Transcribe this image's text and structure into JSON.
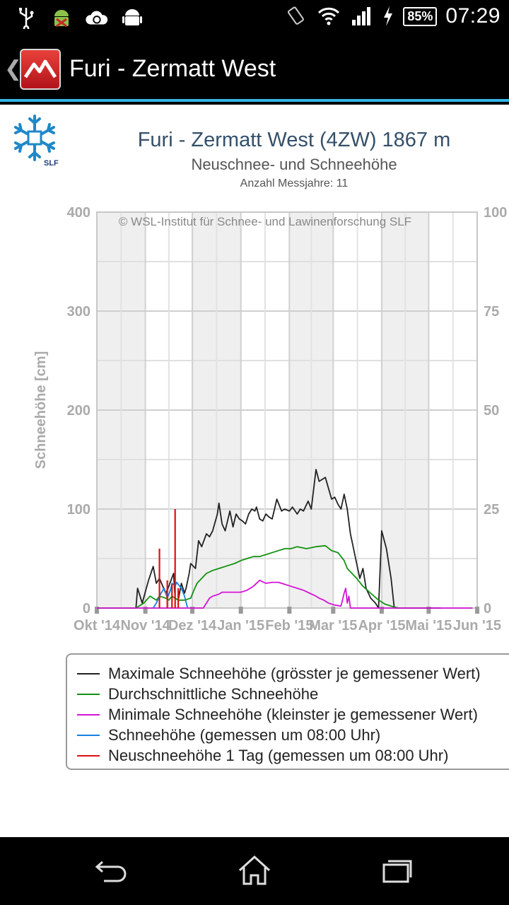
{
  "status_bar": {
    "battery": "85%",
    "time": "07:29",
    "icons": [
      "usb-icon",
      "android-debug-icon",
      "cloud-sync-icon",
      "android-icon",
      "rotate-icon",
      "wifi-icon",
      "signal-icon",
      "charging-icon"
    ]
  },
  "action_bar": {
    "title": "Furi - Zermatt West",
    "back_icon": "chevron-left-icon",
    "logo_icon": "mountain-logo-icon"
  },
  "nav_bar": {
    "icons": [
      "back-arrow-icon",
      "home-icon",
      "recent-apps-icon"
    ]
  },
  "colors": {
    "accent": "#33b5e5",
    "max": "#222222",
    "avg": "#129212",
    "min": "#d414d4",
    "measured": "#1a7fe0",
    "new_snow": "#dd1111",
    "band": "#efefef",
    "axis_text": "#aaaaaa"
  },
  "chart_data": {
    "type": "line",
    "title": "Furi - Zermatt West (4ZW) 1867 m",
    "subtitle": "Neuschnee- und Schneehöhe",
    "note": "Anzahl Messjahre: 11",
    "watermark": "© WSL-Institut für Schnee- und Lawinenforschung SLF",
    "ylabel": "Schneehöhe [cm]",
    "ylim": [
      0,
      400
    ],
    "y_ticks": [
      "0",
      "100",
      "200",
      "300",
      "400"
    ],
    "y2lim": [
      0,
      100
    ],
    "y2_ticks": [
      "0",
      "25",
      "50",
      "75",
      "100"
    ],
    "x_ticks": [
      "Okt '14",
      "Nov '14",
      "Dez '14",
      "Jan '15",
      "Feb '15",
      "Mar '15",
      "Apr '15",
      "Mai '15",
      "Jun '15"
    ],
    "x_unit": "days since 1 Oct 2014",
    "xlim": [
      0,
      243
    ],
    "grid": true,
    "series": [
      {
        "name": "Maximale Schneehöhe (grösster je gemessener Wert)",
        "key": "max",
        "x": [
          0,
          25,
          26,
          29,
          33,
          36,
          38,
          40,
          44,
          46,
          49,
          50,
          52,
          54,
          56,
          57,
          59,
          60,
          63,
          65,
          67,
          70,
          72,
          74,
          77,
          78,
          80,
          82,
          85,
          87,
          89,
          91,
          93,
          95,
          97,
          99,
          101,
          102,
          104,
          106,
          108,
          110,
          112,
          115,
          118,
          120,
          123,
          125,
          128,
          130,
          132,
          135,
          137,
          140,
          142,
          146,
          150,
          152,
          154,
          156,
          158,
          160,
          162,
          164,
          166,
          168,
          170,
          172,
          175,
          178,
          180,
          182,
          185,
          188,
          190,
          192,
          194,
          196,
          198,
          200,
          202,
          204,
          206,
          208,
          210,
          211,
          213,
          215,
          220
        ],
        "values": [
          0,
          0,
          20,
          5,
          28,
          42,
          25,
          30,
          15,
          22,
          35,
          10,
          8,
          25,
          15,
          20,
          35,
          45,
          40,
          68,
          62,
          75,
          72,
          78,
          95,
          106,
          85,
          78,
          98,
          82,
          95,
          90,
          88,
          85,
          95,
          100,
          98,
          102,
          90,
          88,
          95,
          92,
          90,
          110,
          98,
          100,
          98,
          102,
          95,
          100,
          98,
          108,
          100,
          140,
          128,
          132,
          110,
          112,
          105,
          100,
          115,
          100,
          75,
          60,
          45,
          30,
          40,
          20,
          10,
          5,
          0,
          78,
          60,
          30,
          0,
          0,
          0,
          0,
          0,
          0,
          0,
          0,
          0,
          0,
          0,
          0,
          0,
          0,
          0
        ]
      },
      {
        "name": "Durchschnittliche Schneehöhe",
        "key": "avg",
        "x": [
          0,
          25,
          30,
          34,
          36,
          38,
          40,
          44,
          46,
          48,
          50,
          52,
          56,
          60,
          62,
          64,
          67,
          70,
          74,
          78,
          82,
          88,
          92,
          96,
          100,
          104,
          110,
          116,
          120,
          124,
          128,
          134,
          140,
          146,
          150,
          154,
          158,
          160,
          163,
          166,
          170,
          175,
          180,
          184,
          188,
          190,
          193
        ],
        "values": [
          0,
          0,
          5,
          12,
          10,
          8,
          12,
          10,
          8,
          12,
          10,
          8,
          8,
          10,
          18,
          25,
          30,
          35,
          38,
          40,
          42,
          45,
          48,
          50,
          52,
          52,
          55,
          58,
          60,
          60,
          62,
          60,
          62,
          63,
          58,
          56,
          48,
          40,
          35,
          30,
          22,
          15,
          8,
          4,
          2,
          1,
          0
        ]
      },
      {
        "name": "Minimale Schneehöhe (kleinster je gemessener Wert)",
        "key": "min",
        "x": [
          0,
          68,
          70,
          72,
          74,
          78,
          80,
          84,
          88,
          92,
          96,
          100,
          104,
          108,
          112,
          116,
          120,
          124,
          128,
          132,
          136,
          140,
          142,
          145,
          148,
          152,
          156,
          158,
          159,
          160,
          161,
          162,
          164,
          240
        ],
        "values": [
          0,
          0,
          5,
          10,
          12,
          14,
          16,
          16,
          16,
          16,
          18,
          22,
          28,
          25,
          26,
          26,
          24,
          22,
          20,
          18,
          15,
          12,
          10,
          8,
          5,
          3,
          2,
          15,
          20,
          5,
          12,
          0,
          0,
          0
        ]
      },
      {
        "name": "Schneehöhe (gemessen um 08:00 Uhr)",
        "key": "measured",
        "x": [
          36,
          38,
          41,
          43,
          45,
          47,
          48,
          50,
          51,
          52,
          54,
          56,
          58
        ],
        "values": [
          0,
          5,
          15,
          20,
          10,
          18,
          25,
          22,
          26,
          24,
          20,
          12,
          0
        ]
      },
      {
        "name": "Neuschneehöhe 1 Tag (gemessen um 08:00 Uhr)",
        "key": "new_snow",
        "x": [
          40,
          45,
          48,
          50,
          52
        ],
        "values": [
          15,
          7,
          6,
          25,
          5
        ]
      }
    ]
  }
}
